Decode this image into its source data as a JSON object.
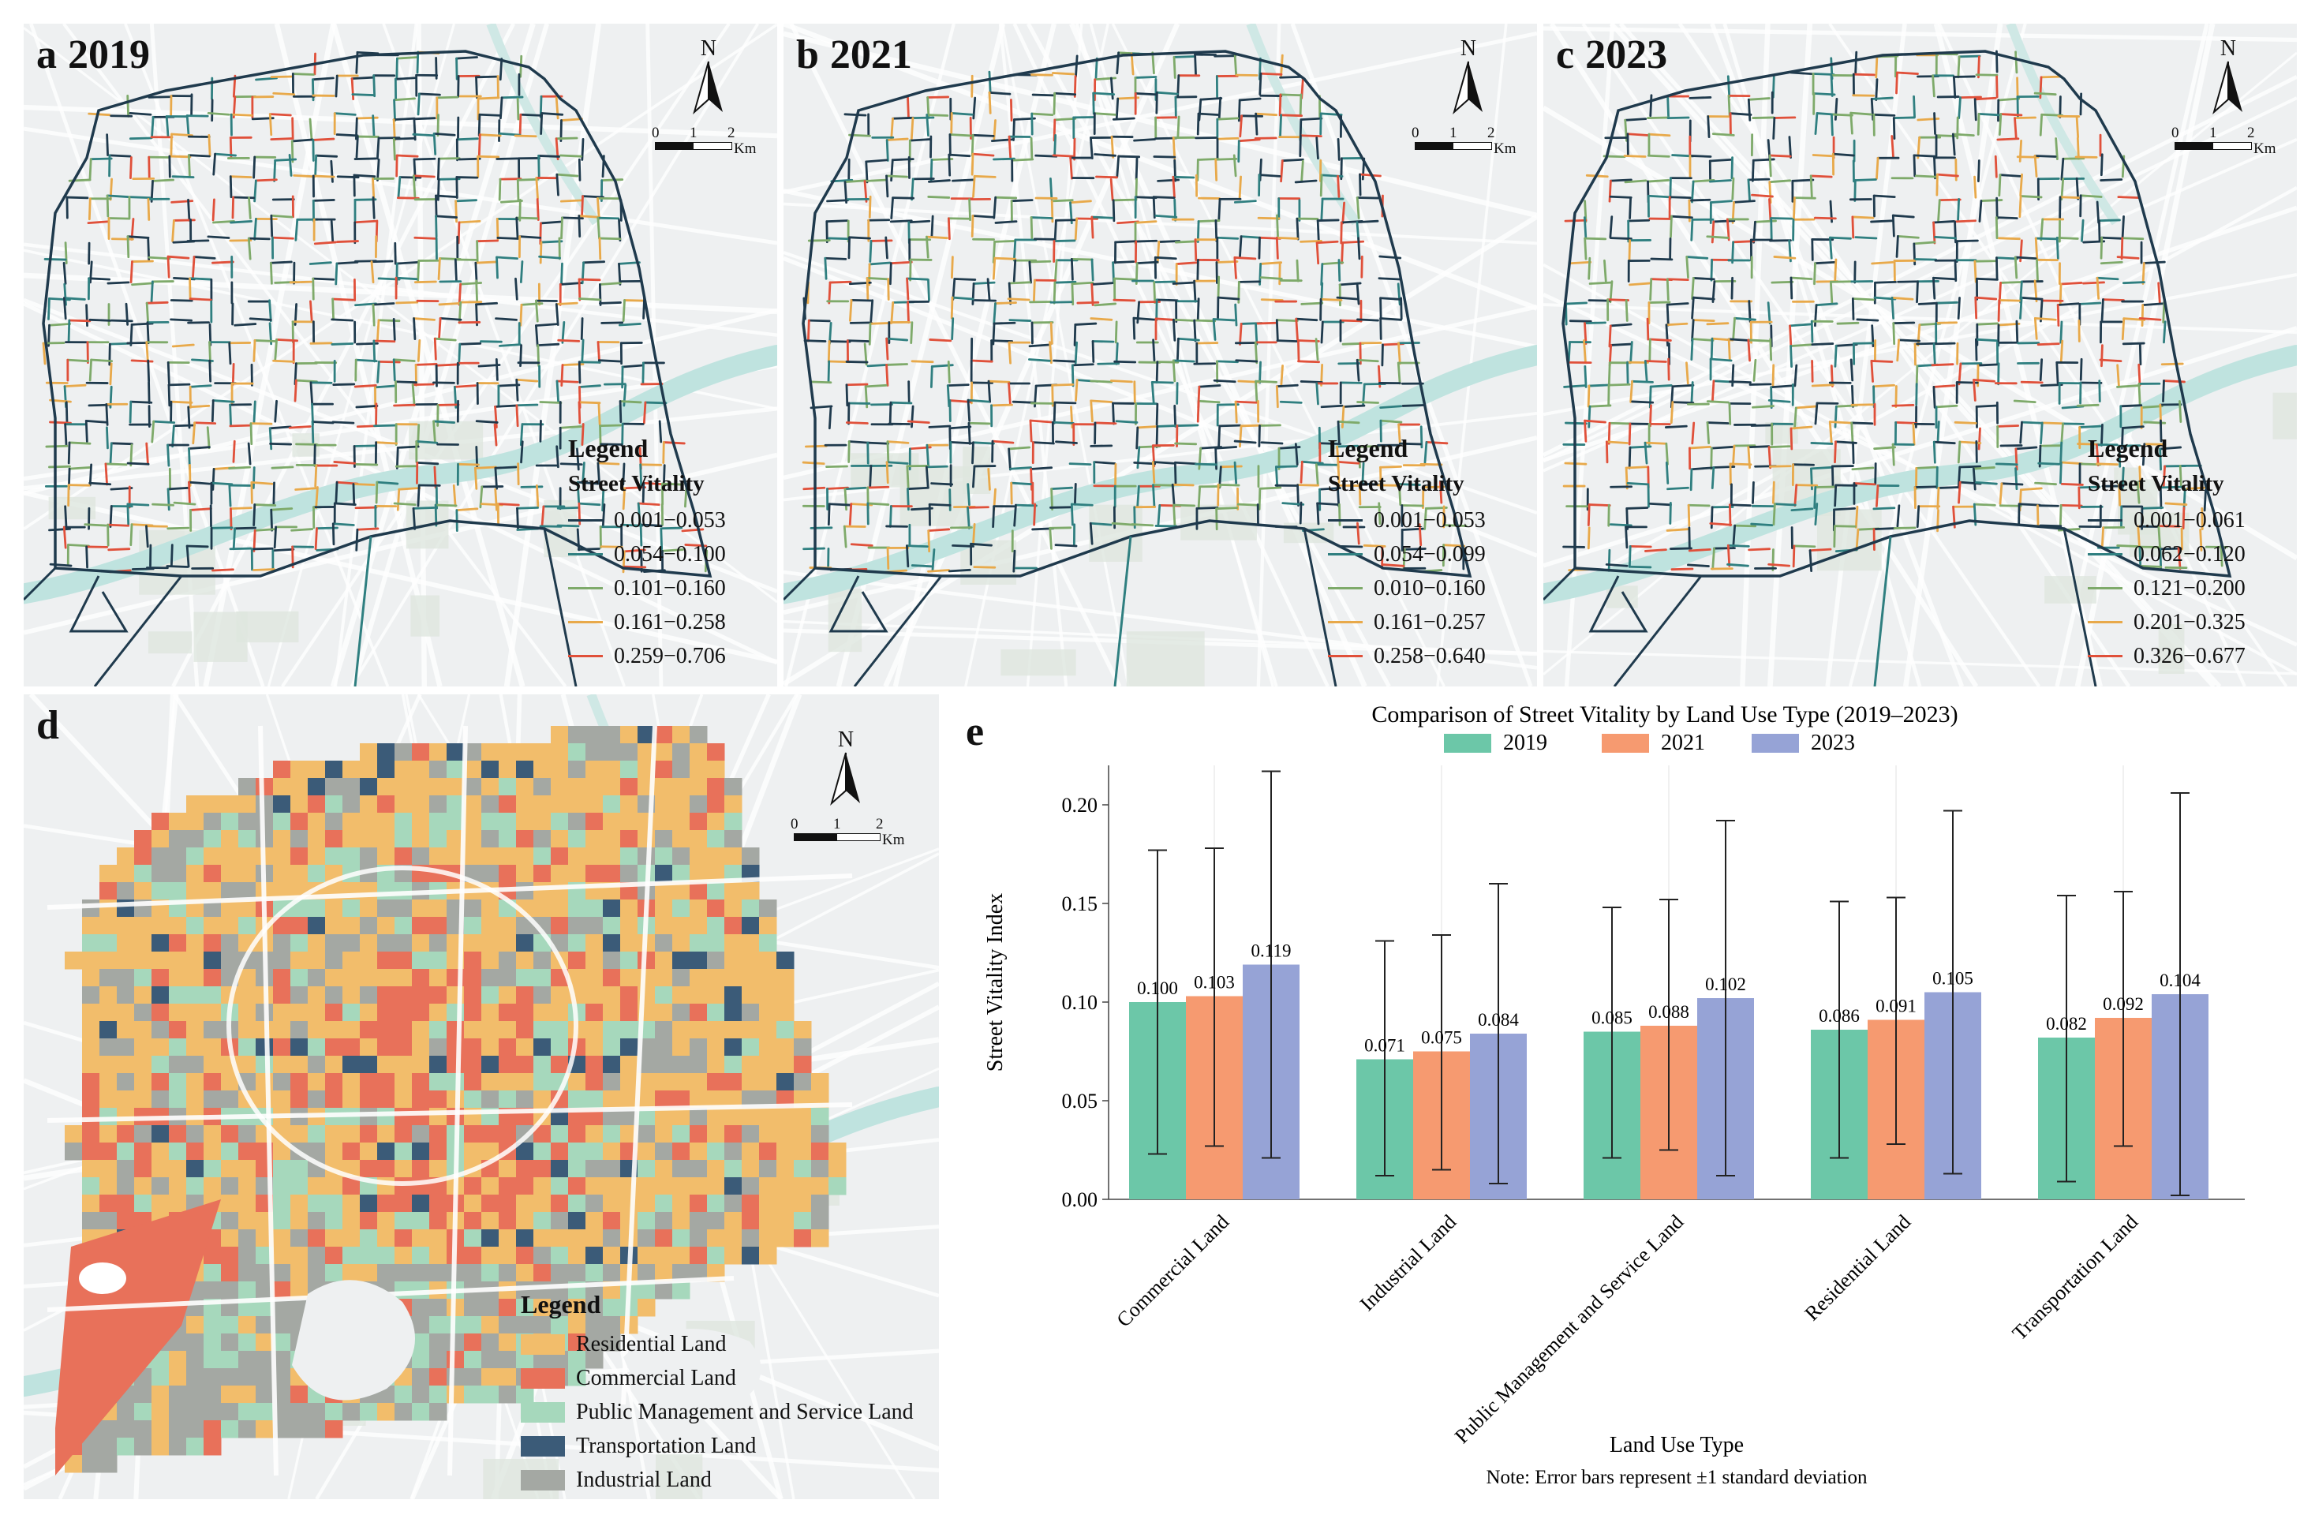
{
  "panels": [
    {
      "letter": "a",
      "year": "2019",
      "legend_title": "Legend",
      "legend_subtitle": "Street Vitality",
      "classes": [
        "0.001−0.053",
        "0.054−0.100",
        "0.101−0.160",
        "0.161−0.258",
        "0.259−0.706"
      ]
    },
    {
      "letter": "b",
      "year": "2021",
      "legend_title": "Legend",
      "legend_subtitle": "Street Vitality",
      "classes": [
        "0.001−0.053",
        "0.054−0.099",
        "0.010−0.160",
        "0.161−0.257",
        "0.258−0.640"
      ]
    },
    {
      "letter": "c",
      "year": "2023",
      "legend_title": "Legend",
      "legend_subtitle": "Street Vitality",
      "classes": [
        "0.001−0.061",
        "0.062−0.120",
        "0.121−0.200",
        "0.201−0.325",
        "0.326−0.677"
      ]
    }
  ],
  "vitality_colors": [
    "#1f3a4d",
    "#2f7f80",
    "#7eaa6a",
    "#e8a94a",
    "#e0503a"
  ],
  "north_label": "N",
  "scale_labels": {
    "zero": "0",
    "one": "1",
    "two": "2",
    "unit": "Km"
  },
  "land_use_map": {
    "letter": "d",
    "legend_title": "Legend",
    "classes": [
      {
        "label": "Residential Land",
        "color": "#f2bd6b"
      },
      {
        "label": "Commercial Land",
        "color": "#e8715a"
      },
      {
        "label": "Public Management and Service Land",
        "color": "#a6d8bc"
      },
      {
        "label": "Transportation Land",
        "color": "#3b5b78"
      },
      {
        "label": "Industrial Land",
        "color": "#a4a8a3"
      }
    ]
  },
  "chart_letter": "e",
  "chart_data": {
    "type": "bar",
    "title": "Comparison of Street Vitality by Land Use Type (2019–2023)",
    "xlabel": "Land Use Type",
    "ylabel": "Street Vitality Index",
    "note": "Note: Error bars represent ±1 standard deviation",
    "ylim": [
      0,
      0.22
    ],
    "yticks": [
      "0.00",
      "0.05",
      "0.10",
      "0.15",
      "0.20"
    ],
    "categories": [
      "Commercial Land",
      "Industrial Land",
      "Public Management and Service Land",
      "Residential Land",
      "Transportation Land"
    ],
    "series": [
      {
        "name": "2019",
        "color": "#6cc7a8",
        "values": [
          0.1,
          0.071,
          0.085,
          0.086,
          0.082
        ],
        "labels": [
          "0.100",
          "0.071",
          "0.085",
          "0.086",
          "0.082"
        ],
        "err_low": [
          0.023,
          0.012,
          0.021,
          0.021,
          0.009
        ],
        "err_high": [
          0.177,
          0.131,
          0.148,
          0.151,
          0.154
        ]
      },
      {
        "name": "2021",
        "color": "#f69a70",
        "values": [
          0.103,
          0.075,
          0.088,
          0.091,
          0.092
        ],
        "labels": [
          "0.103",
          "0.075",
          "0.088",
          "0.091",
          "0.092"
        ],
        "err_low": [
          0.027,
          0.015,
          0.025,
          0.028,
          0.027
        ],
        "err_high": [
          0.178,
          0.134,
          0.152,
          0.153,
          0.156
        ]
      },
      {
        "name": "2023",
        "color": "#96a3d6",
        "values": [
          0.119,
          0.084,
          0.102,
          0.105,
          0.104
        ],
        "labels": [
          "0.119",
          "0.084",
          "0.102",
          "0.105",
          "0.104"
        ],
        "err_low": [
          0.021,
          0.008,
          0.012,
          0.013,
          0.002
        ],
        "err_high": [
          0.217,
          0.16,
          0.192,
          0.197,
          0.206
        ]
      }
    ]
  }
}
